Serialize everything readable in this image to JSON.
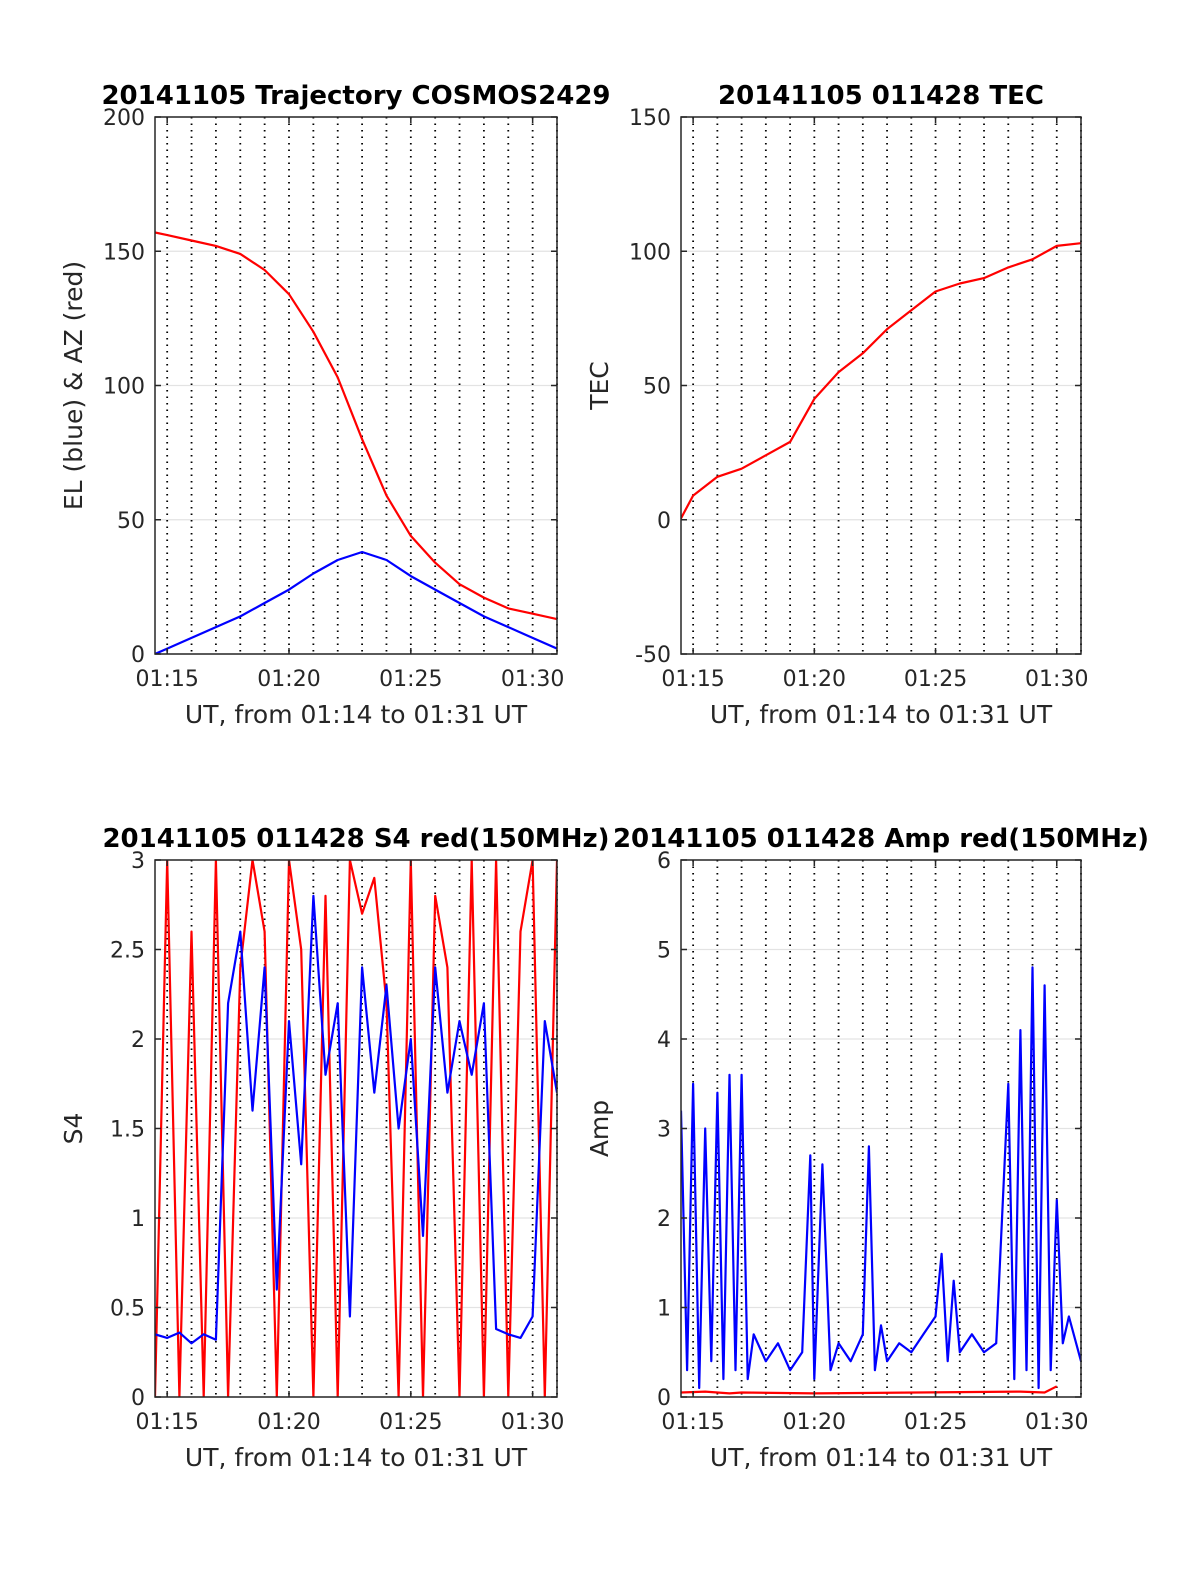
{
  "chart_data": [
    {
      "id": "traj",
      "type": "line",
      "title": "20141105 Trajectory COSMOS2429",
      "xlabel": "UT, from 01:14 to 01:31 UT",
      "ylabel": "EL (blue) & AZ (red)",
      "xlim": [
        "01:14:30",
        "01:31:00"
      ],
      "ylim": [
        0,
        200
      ],
      "xticks": [
        "01:15",
        "01:20",
        "01:25",
        "01:30"
      ],
      "yticks": [
        0,
        50,
        100,
        150,
        200
      ],
      "grid": true,
      "series": [
        {
          "color": "#ff0000",
          "x": [
            "01:14:30",
            "01:15:00",
            "01:16:00",
            "01:17:00",
            "01:18:00",
            "01:19:00",
            "01:20:00",
            "01:21:00",
            "01:22:00",
            "01:23:00",
            "01:24:00",
            "01:25:00",
            "01:26:00",
            "01:27:00",
            "01:28:00",
            "01:29:00",
            "01:30:00",
            "01:31:00"
          ],
          "y": [
            157,
            156,
            154,
            152,
            149,
            143,
            134,
            120,
            103,
            80,
            59,
            44,
            34,
            26,
            21,
            17,
            15,
            13
          ]
        },
        {
          "color": "#0000ff",
          "x": [
            "01:14:30",
            "01:15:00",
            "01:16:00",
            "01:17:00",
            "01:18:00",
            "01:19:00",
            "01:20:00",
            "01:21:00",
            "01:22:00",
            "01:23:00",
            "01:24:00",
            "01:25:00",
            "01:26:00",
            "01:27:00",
            "01:28:00",
            "01:29:00",
            "01:30:00",
            "01:31:00"
          ],
          "y": [
            0,
            2,
            6,
            10,
            14,
            19,
            24,
            30,
            35,
            38,
            35,
            29,
            24,
            19,
            14,
            10,
            6,
            2
          ]
        }
      ]
    },
    {
      "id": "tec",
      "type": "line",
      "title": "20141105 011428 TEC",
      "xlabel": "UT, from 01:14 to 01:31 UT",
      "ylabel": "TEC",
      "xlim": [
        "01:14:30",
        "01:31:00"
      ],
      "ylim": [
        -50,
        150
      ],
      "xticks": [
        "01:15",
        "01:20",
        "01:25",
        "01:30"
      ],
      "yticks": [
        -50,
        0,
        50,
        100,
        150
      ],
      "grid": true,
      "series": [
        {
          "color": "#ff0000",
          "x": [
            "01:14:28",
            "01:15:00",
            "01:16:00",
            "01:17:00",
            "01:18:00",
            "01:19:00",
            "01:20:00",
            "01:21:00",
            "01:22:00",
            "01:23:00",
            "01:24:00",
            "01:25:00",
            "01:26:00",
            "01:27:00",
            "01:28:00",
            "01:29:00",
            "01:30:00",
            "01:31:00"
          ],
          "y": [
            0,
            9,
            16,
            19,
            24,
            29,
            45,
            55,
            62,
            71,
            78,
            85,
            88,
            90,
            94,
            97,
            102,
            103
          ]
        }
      ]
    },
    {
      "id": "s4",
      "type": "line",
      "title": "20141105 011428 S4 red(150MHz)",
      "xlabel": "UT, from 01:14 to 01:31 UT",
      "ylabel": "S4",
      "xlim": [
        "01:14:30",
        "01:31:00"
      ],
      "ylim": [
        0,
        3
      ],
      "xticks": [
        "01:15",
        "01:20",
        "01:25",
        "01:30"
      ],
      "yticks": [
        0,
        0.5,
        1,
        1.5,
        2,
        2.5,
        3
      ],
      "grid": true,
      "series": [
        {
          "color": "#ff0000",
          "x": [
            "01:14:30",
            "01:15:00",
            "01:15:30",
            "01:16:00",
            "01:16:30",
            "01:17:00",
            "01:17:30",
            "01:18:00",
            "01:18:30",
            "01:19:00",
            "01:19:30",
            "01:20:00",
            "01:20:30",
            "01:21:00",
            "01:21:30",
            "01:22:00",
            "01:22:30",
            "01:23:00",
            "01:23:30",
            "01:24:00",
            "01:24:30",
            "01:25:00",
            "01:25:30",
            "01:26:00",
            "01:26:30",
            "01:27:00",
            "01:27:30",
            "01:28:00",
            "01:28:30",
            "01:29:00",
            "01:29:30",
            "01:30:00",
            "01:30:30",
            "01:31:00"
          ],
          "y": [
            0,
            3.0,
            0,
            2.6,
            0,
            3.0,
            0,
            2.4,
            3.0,
            2.6,
            0,
            3.0,
            2.5,
            0,
            2.8,
            0,
            3.0,
            2.7,
            2.9,
            2.2,
            0,
            3.0,
            0,
            2.8,
            2.4,
            0,
            3.0,
            0,
            3.0,
            0,
            2.6,
            3.0,
            0,
            3.0
          ]
        },
        {
          "color": "#0000ff",
          "x": [
            "01:14:30",
            "01:15:00",
            "01:15:30",
            "01:16:00",
            "01:16:30",
            "01:17:00",
            "01:17:30",
            "01:18:00",
            "01:18:30",
            "01:19:00",
            "01:19:30",
            "01:20:00",
            "01:20:30",
            "01:21:00",
            "01:21:30",
            "01:22:00",
            "01:22:30",
            "01:23:00",
            "01:23:30",
            "01:24:00",
            "01:24:30",
            "01:25:00",
            "01:25:30",
            "01:26:00",
            "01:26:30",
            "01:27:00",
            "01:27:30",
            "01:28:00",
            "01:28:30",
            "01:29:00",
            "01:29:30",
            "01:30:00",
            "01:30:30",
            "01:31:00"
          ],
          "y": [
            0.35,
            0.33,
            0.36,
            0.3,
            0.35,
            0.32,
            2.2,
            2.6,
            1.6,
            2.4,
            0.6,
            2.1,
            1.3,
            2.8,
            1.8,
            2.2,
            0.45,
            2.4,
            1.7,
            2.3,
            1.5,
            2.0,
            0.9,
            2.4,
            1.7,
            2.1,
            1.8,
            2.2,
            0.38,
            0.35,
            0.33,
            0.45,
            2.1,
            1.7
          ]
        }
      ]
    },
    {
      "id": "amp",
      "type": "line",
      "title": "20141105 011428 Amp red(150MHz)",
      "xlabel": "UT, from 01:14 to 01:31 UT",
      "ylabel": "Amp",
      "xlim": [
        "01:14:30",
        "01:31:00"
      ],
      "ylim": [
        0,
        6
      ],
      "xticks": [
        "01:15",
        "01:20",
        "01:25",
        "01:30"
      ],
      "yticks": [
        0,
        1,
        2,
        3,
        4,
        5,
        6
      ],
      "grid": true,
      "series": [
        {
          "color": "#ff0000",
          "x": [
            "01:14:30",
            "01:15:30",
            "01:16:30",
            "01:17:00",
            "01:20:00",
            "01:28:30",
            "01:29:30",
            "01:30:00"
          ],
          "y": [
            0.05,
            0.06,
            0.04,
            0.05,
            0.04,
            0.06,
            0.05,
            0.12
          ]
        },
        {
          "color": "#0000ff",
          "x": [
            "01:14:30",
            "01:14:45",
            "01:15:00",
            "01:15:15",
            "01:15:30",
            "01:15:45",
            "01:16:00",
            "01:16:15",
            "01:16:30",
            "01:16:45",
            "01:17:00",
            "01:17:15",
            "01:17:30",
            "01:18:00",
            "01:18:30",
            "01:19:00",
            "01:19:30",
            "01:19:50",
            "01:20:00",
            "01:20:20",
            "01:20:40",
            "01:21:00",
            "01:21:30",
            "01:22:00",
            "01:22:15",
            "01:22:30",
            "01:22:45",
            "01:23:00",
            "01:23:30",
            "01:24:00",
            "01:24:30",
            "01:25:00",
            "01:25:15",
            "01:25:30",
            "01:25:45",
            "01:26:00",
            "01:26:30",
            "01:27:00",
            "01:27:30",
            "01:28:00",
            "01:28:15",
            "01:28:30",
            "01:28:45",
            "01:29:00",
            "01:29:15",
            "01:29:30",
            "01:29:45",
            "01:30:00",
            "01:30:15",
            "01:30:30",
            "01:31:00"
          ],
          "y": [
            3.2,
            0.3,
            3.5,
            0.1,
            3.0,
            0.4,
            3.4,
            0.2,
            3.6,
            0.3,
            3.6,
            0.2,
            0.7,
            0.4,
            0.6,
            0.3,
            0.5,
            2.7,
            0.2,
            2.6,
            0.3,
            0.6,
            0.4,
            0.7,
            2.8,
            0.3,
            0.8,
            0.4,
            0.6,
            0.5,
            0.7,
            0.9,
            1.6,
            0.4,
            1.3,
            0.5,
            0.7,
            0.5,
            0.6,
            3.5,
            0.2,
            4.1,
            0.3,
            4.8,
            0.1,
            4.6,
            0.3,
            2.2,
            0.6,
            0.9,
            0.4
          ]
        }
      ]
    }
  ]
}
